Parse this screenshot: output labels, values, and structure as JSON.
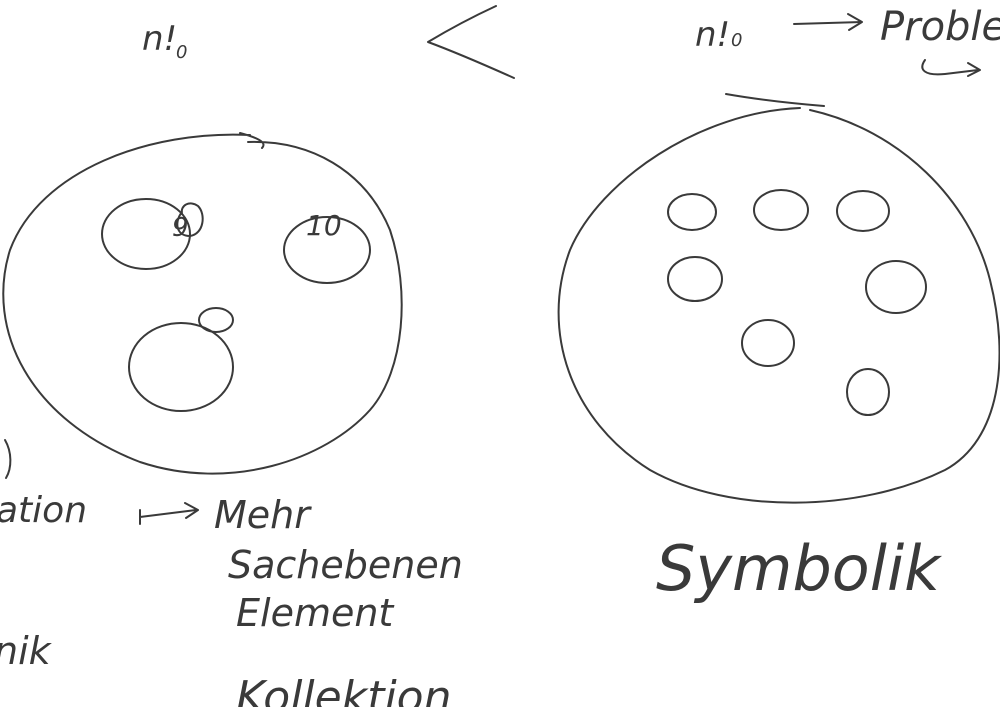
{
  "labels": {
    "left_n": "n!",
    "left_n_sub": "0",
    "right_n": "n!",
    "right_n_sub": "0",
    "problem": "Proble",
    "ring_9": "9",
    "ring_10": "10",
    "ation": "ation",
    "mehr": "Mehr",
    "sachebenen": "Sachebenen",
    "element": "Element",
    "nik": "nik",
    "kollektion": "Kollektion",
    "symbolik": "Symbolik"
  },
  "colors": {
    "ink": "#3a3a3a",
    "paper": "#ffffff"
  }
}
